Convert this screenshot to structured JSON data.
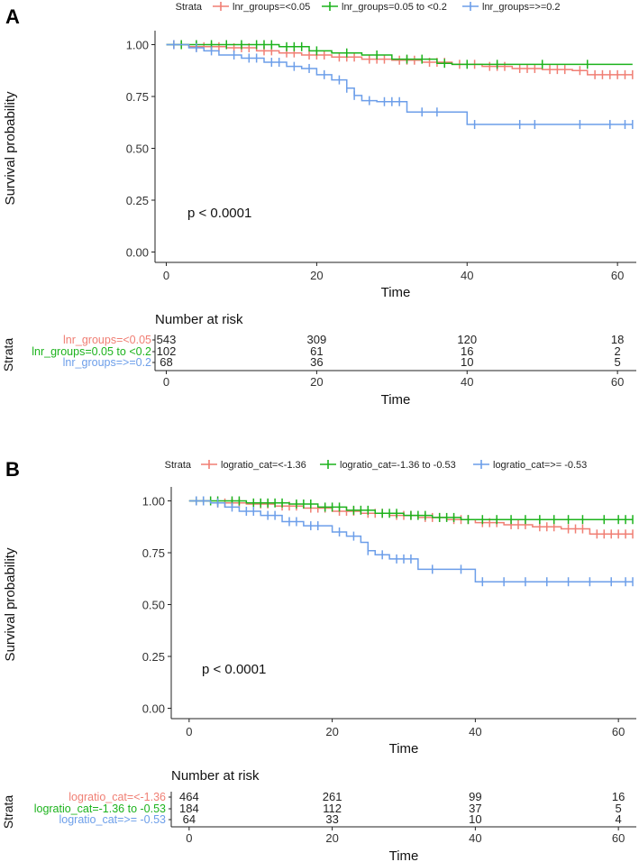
{
  "figure": {
    "panel_a_label": "A",
    "panel_b_label": "B"
  },
  "colors": {
    "red": "#f07f74",
    "green": "#1db31d",
    "blue": "#6c9ee9",
    "axis": "#222222"
  },
  "chart_data": [
    {
      "type": "line",
      "panel": "A",
      "title": "",
      "xlabel": "Time",
      "ylabel": "Survival probability",
      "xlim": [
        -1.5,
        62.5
      ],
      "ylim": [
        -0.05,
        1.05
      ],
      "xticks": [
        0,
        20,
        40,
        60
      ],
      "yticks": [
        0,
        0.25,
        0.5,
        0.75,
        1
      ],
      "ytick_labels": [
        "0.00",
        "0.25",
        "0.50",
        "0.75",
        "1.00"
      ],
      "pvalue": "p < 0.0001",
      "legend": {
        "title": "Strata",
        "position": "top"
      },
      "series": [
        {
          "name": "lnr_groups=<0.05",
          "color": "red",
          "x": [
            0,
            3,
            8,
            12,
            15,
            18,
            22,
            26,
            30,
            34,
            38,
            42,
            46,
            50,
            54,
            56,
            62
          ],
          "y": [
            1,
            0.99,
            0.985,
            0.97,
            0.96,
            0.95,
            0.94,
            0.93,
            0.925,
            0.915,
            0.905,
            0.895,
            0.885,
            0.88,
            0.875,
            0.855,
            0.855
          ],
          "censor_x": [
            1,
            2,
            4,
            5,
            6,
            7,
            9,
            10,
            11,
            13,
            14,
            16,
            17,
            19,
            20,
            21,
            23,
            24,
            25,
            27,
            28,
            29,
            31,
            32,
            33,
            35,
            36,
            37,
            39,
            41,
            43,
            44,
            45,
            47,
            48,
            49,
            51,
            52,
            53,
            55,
            57,
            58,
            59,
            60,
            61,
            62
          ]
        },
        {
          "name": "lnr_groups=0.05 to <0.2",
          "color": "green",
          "x": [
            0,
            15,
            19,
            22,
            26,
            30,
            36,
            38,
            62
          ],
          "y": [
            1,
            0.99,
            0.97,
            0.96,
            0.95,
            0.93,
            0.91,
            0.905,
            0.905
          ],
          "censor_x": [
            2,
            4,
            6,
            8,
            10,
            12,
            13,
            14,
            16,
            17,
            18,
            20,
            24,
            28,
            32,
            34,
            37,
            40,
            44,
            50,
            56
          ]
        },
        {
          "name": "lnr_groups=>=0.2",
          "color": "blue",
          "x": [
            0,
            3,
            5,
            7,
            10,
            13,
            16,
            18,
            20,
            22,
            24,
            25,
            26,
            28,
            32,
            35,
            40,
            62
          ],
          "y": [
            1,
            0.985,
            0.97,
            0.95,
            0.935,
            0.915,
            0.895,
            0.885,
            0.855,
            0.83,
            0.79,
            0.755,
            0.73,
            0.725,
            0.675,
            0.675,
            0.615,
            0.615
          ],
          "censor_x": [
            1,
            4,
            6,
            9,
            11,
            12,
            14,
            15,
            17,
            19,
            21,
            23,
            24,
            25,
            27,
            29,
            30,
            31,
            34,
            36,
            41,
            47,
            49,
            55,
            59,
            61,
            62
          ]
        }
      ],
      "risk_table": {
        "title": "Number at risk",
        "ylabel": "Strata",
        "xlabel": "Time",
        "rows": [
          {
            "label": "lnr_groups=<0.05",
            "color": "red",
            "values": [
              "543",
              "309",
              "120",
              "18"
            ]
          },
          {
            "label": "lnr_groups=0.05 to <0.2",
            "color": "green",
            "values": [
              "102",
              "61",
              "16",
              "2"
            ]
          },
          {
            "label": "lnr_groups=>=0.2",
            "color": "blue",
            "values": [
              "68",
              "36",
              "10",
              "5"
            ]
          }
        ]
      }
    },
    {
      "type": "line",
      "panel": "B",
      "title": "",
      "xlabel": "Time",
      "ylabel": "Survival probability",
      "xlim": [
        -2.5,
        62.5
      ],
      "ylim": [
        -0.05,
        1.05
      ],
      "xticks": [
        0,
        20,
        40,
        60
      ],
      "yticks": [
        0,
        0.25,
        0.5,
        0.75,
        1
      ],
      "ytick_labels": [
        "0.00",
        "0.25",
        "0.50",
        "0.75",
        "1.00"
      ],
      "pvalue": "p < 0.0001",
      "legend": {
        "title": "Strata",
        "position": "top"
      },
      "series": [
        {
          "name": "logratio_cat=<-1.36",
          "color": "red",
          "x": [
            0,
            3,
            8,
            12,
            16,
            20,
            24,
            28,
            32,
            36,
            40,
            44,
            48,
            52,
            56,
            62
          ],
          "y": [
            1,
            0.99,
            0.985,
            0.975,
            0.965,
            0.95,
            0.94,
            0.93,
            0.92,
            0.91,
            0.895,
            0.885,
            0.875,
            0.865,
            0.84,
            0.84
          ],
          "censor_x": [
            1,
            2,
            4,
            5,
            6,
            7,
            9,
            10,
            11,
            13,
            14,
            15,
            17,
            18,
            19,
            21,
            22,
            23,
            25,
            26,
            27,
            29,
            30,
            31,
            33,
            34,
            35,
            37,
            38,
            39,
            41,
            42,
            43,
            45,
            46,
            47,
            49,
            50,
            51,
            53,
            54,
            55,
            57,
            58,
            59,
            60,
            61,
            62
          ]
        },
        {
          "name": "logratio_cat=-1.36 to -0.53",
          "color": "green",
          "x": [
            0,
            8,
            14,
            18,
            22,
            26,
            30,
            34,
            38,
            62
          ],
          "y": [
            1,
            0.99,
            0.985,
            0.97,
            0.955,
            0.94,
            0.93,
            0.92,
            0.91,
            0.91
          ],
          "censor_x": [
            1,
            2,
            3,
            4,
            6,
            7,
            9,
            10,
            11,
            12,
            13,
            15,
            16,
            17,
            19,
            20,
            21,
            23,
            24,
            25,
            27,
            28,
            29,
            31,
            32,
            33,
            35,
            36,
            37,
            39,
            41,
            43,
            45,
            47,
            49,
            51,
            53,
            55,
            58,
            60,
            61,
            62
          ]
        },
        {
          "name": "logratio_cat=>= -0.53",
          "color": "blue",
          "x": [
            0,
            3,
            5,
            7,
            10,
            13,
            16,
            20,
            22,
            24,
            25,
            26,
            28,
            32,
            35,
            40,
            62
          ],
          "y": [
            1,
            0.99,
            0.97,
            0.95,
            0.93,
            0.9,
            0.88,
            0.85,
            0.83,
            0.8,
            0.76,
            0.74,
            0.72,
            0.67,
            0.67,
            0.61,
            0.61
          ],
          "censor_x": [
            1,
            2,
            4,
            6,
            8,
            9,
            11,
            12,
            14,
            15,
            17,
            18,
            21,
            23,
            25,
            27,
            29,
            30,
            31,
            34,
            38,
            41,
            44,
            47,
            50,
            53,
            56,
            59,
            61,
            62
          ]
        }
      ],
      "risk_table": {
        "title": "Number at risk",
        "ylabel": "Strata",
        "xlabel": "Time",
        "rows": [
          {
            "label": "logratio_cat=<-1.36",
            "color": "red",
            "values": [
              "464",
              "261",
              "99",
              "16"
            ]
          },
          {
            "label": "logratio_cat=-1.36 to -0.53",
            "color": "green",
            "values": [
              "184",
              "112",
              "37",
              "5"
            ]
          },
          {
            "label": "logratio_cat=>= -0.53",
            "color": "blue",
            "values": [
              "64",
              "33",
              "10",
              "4"
            ]
          }
        ]
      }
    }
  ]
}
